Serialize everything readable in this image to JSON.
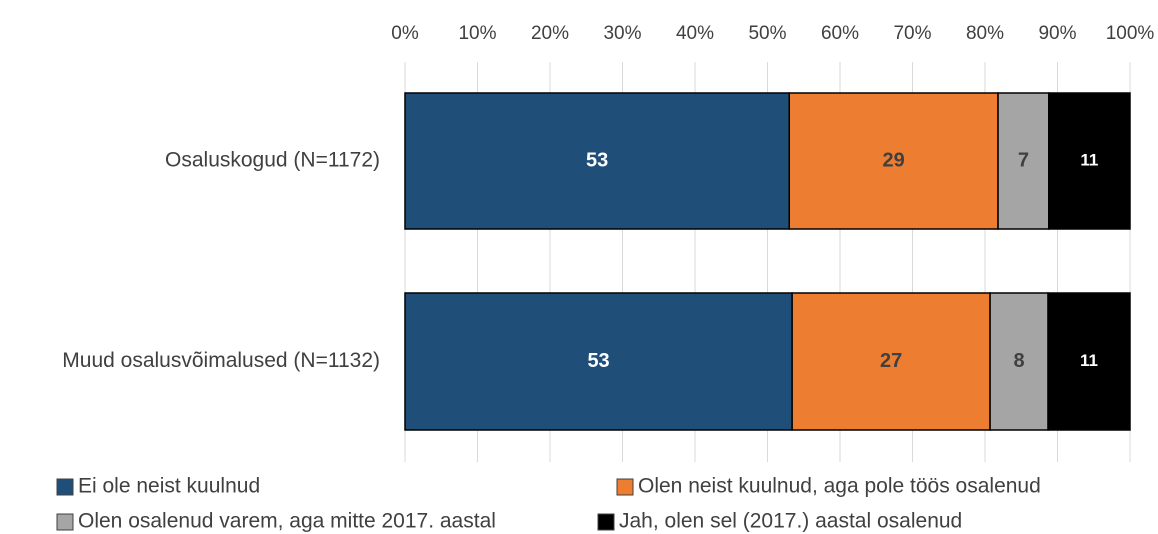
{
  "chart_data": {
    "type": "stacked_bar_horizontal",
    "categories": [
      "Osaluskogud (N=1172)",
      "Muud osalusvõimalused (N=1132)"
    ],
    "series": [
      {
        "name": "Ei ole neist kuulnud",
        "color": "#1f4e79",
        "values": [
          53.0,
          53.4
        ],
        "value_labels": [
          "53",
          "53"
        ]
      },
      {
        "name": "Olen neist kuulnud, aga pole töös osalenud",
        "color": "#ed7d31",
        "values": [
          28.8,
          27.3
        ],
        "value_labels": [
          "29",
          "27"
        ]
      },
      {
        "name": "Olen osalenud varem, aga mitte 2017. aastal",
        "color": "#a5a5a5",
        "values": [
          7.0,
          8.0
        ],
        "value_labels": [
          "7",
          "8"
        ]
      },
      {
        "name": "Jah, olen sel (2017.) aastal osalenud",
        "color": "#000000",
        "values": [
          11.2,
          11.3
        ],
        "value_labels": [
          "11",
          "11"
        ]
      }
    ],
    "xlim": [
      0,
      100
    ],
    "xticks": [
      {
        "value": 0,
        "label": "0%"
      },
      {
        "value": 10,
        "label": "10%"
      },
      {
        "value": 20,
        "label": "20%"
      },
      {
        "value": 30,
        "label": "30%"
      },
      {
        "value": 40,
        "label": "40%"
      },
      {
        "value": 50,
        "label": "50%"
      },
      {
        "value": 60,
        "label": "60%"
      },
      {
        "value": 70,
        "label": "70%"
      },
      {
        "value": 80,
        "label": "80%"
      },
      {
        "value": 90,
        "label": "90%"
      },
      {
        "value": 100,
        "label": "100%"
      }
    ],
    "grid": true,
    "legend": "bottom"
  }
}
